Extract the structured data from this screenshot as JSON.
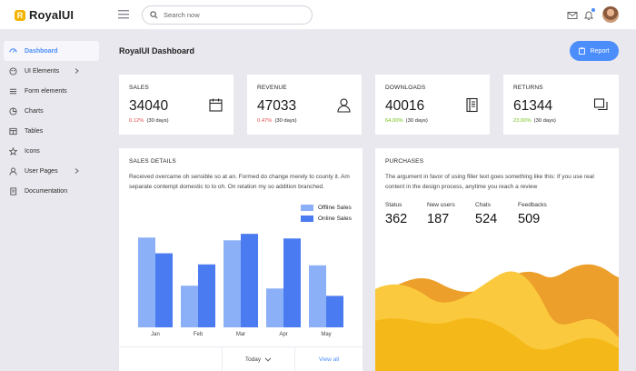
{
  "brand": {
    "mark": "R",
    "name": "RoyalUI"
  },
  "search": {
    "placeholder": "Search now"
  },
  "sidebar": {
    "items": [
      {
        "label": "Dashboard",
        "icon": "dashboard-icon",
        "active": true
      },
      {
        "label": "UI Elements",
        "icon": "palette-icon",
        "has_children": true
      },
      {
        "label": "Form elements",
        "icon": "form-icon"
      },
      {
        "label": "Charts",
        "icon": "pie-chart-icon"
      },
      {
        "label": "Tables",
        "icon": "table-icon"
      },
      {
        "label": "Icons",
        "icon": "star-icon"
      },
      {
        "label": "User Pages",
        "icon": "user-icon",
        "has_children": true
      },
      {
        "label": "Documentation",
        "icon": "document-icon"
      }
    ]
  },
  "page": {
    "title": "RoyalUI Dashboard",
    "report_label": "Report"
  },
  "stats": [
    {
      "title": "SALES",
      "value": "34040",
      "change": "0.12%",
      "period": "(30 days)",
      "change_color": "#e64a4a",
      "icon": "calendar-icon"
    },
    {
      "title": "REVENUE",
      "value": "47033",
      "change": "0.47%",
      "period": "(30 days)",
      "change_color": "#e64a4a",
      "icon": "user-icon"
    },
    {
      "title": "DOWNLOADS",
      "value": "40016",
      "change": "64.00%",
      "period": "(30 days)",
      "change_color": "#71c016",
      "icon": "notebook-icon"
    },
    {
      "title": "RETURNS",
      "value": "61344",
      "change": "23.00%",
      "period": "(30 days)",
      "change_color": "#71c016",
      "icon": "copy-icon"
    }
  ],
  "sales_details": {
    "title": "SALES DETAILS",
    "description": "Received overcame oh sensible so at an. Formed do change merely to county it. Am separate contempt domestic to to oh. On relation my so addition branched.",
    "footer": {
      "select_label": "Today",
      "link_label": "View all"
    }
  },
  "chart_data": {
    "type": "bar",
    "categories": [
      "Jan",
      "Feb",
      "Mar",
      "Apr",
      "May"
    ],
    "series": [
      {
        "name": "Offline Sales",
        "color": "#8cb0f7",
        "values": [
          97,
          45,
          94,
          42,
          67
        ]
      },
      {
        "name": "Online Sales",
        "color": "#4b7bf0",
        "values": [
          80,
          68,
          101,
          96,
          34
        ]
      }
    ],
    "ylim": [
      0,
      110
    ],
    "grid": false,
    "legend_position": "top-right"
  },
  "purchases": {
    "title": "PURCHASES",
    "description": "The argument in favor of using filler text goes something like this: If you use real content in the design process, anytime you reach a review",
    "stats": [
      {
        "label": "Status",
        "value": "362"
      },
      {
        "label": "New users",
        "value": "187"
      },
      {
        "label": "Chats",
        "value": "524"
      },
      {
        "label": "Feedbacks",
        "value": "509"
      }
    ],
    "colors": {
      "light": "#fbc93d",
      "mid": "#f4b918",
      "dark": "#ec9f2a"
    }
  },
  "colors": {
    "accent": "#4b8efb",
    "background": "#e8e8ee",
    "card": "#ffffff"
  }
}
